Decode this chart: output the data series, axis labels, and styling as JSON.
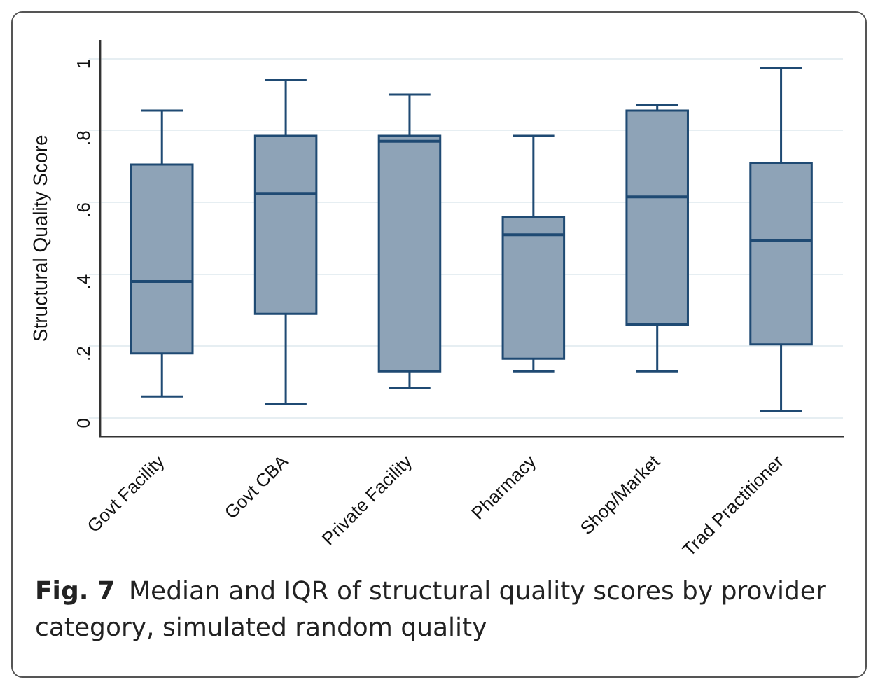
{
  "chart_data": {
    "type": "box",
    "ylabel": "Structural Quality Score",
    "categories": [
      "Govt Facility",
      "Govt CBA",
      "Private Facility",
      "Pharmacy",
      "Shop/Market",
      "Trad Practitioner"
    ],
    "boxes": [
      {
        "low": 0.06,
        "q1": 0.18,
        "median": 0.38,
        "q3": 0.705,
        "high": 0.855
      },
      {
        "low": 0.04,
        "q1": 0.29,
        "median": 0.625,
        "q3": 0.785,
        "high": 0.94
      },
      {
        "low": 0.085,
        "q1": 0.13,
        "median": 0.77,
        "q3": 0.785,
        "high": 0.9
      },
      {
        "low": 0.13,
        "q1": 0.165,
        "median": 0.51,
        "q3": 0.56,
        "high": 0.785
      },
      {
        "low": 0.13,
        "q1": 0.26,
        "median": 0.615,
        "q3": 0.855,
        "high": 0.87
      },
      {
        "low": 0.02,
        "q1": 0.205,
        "median": 0.495,
        "q3": 0.71,
        "high": 0.975
      }
    ],
    "color": "#8ea3b7",
    "ylim": [
      -0.05,
      1.05
    ],
    "yticks": [
      {
        "value": 0,
        "label": "0"
      },
      {
        "value": 0.2,
        "label": ".2"
      },
      {
        "value": 0.4,
        "label": ".4"
      },
      {
        "value": 0.6,
        "label": ".6"
      },
      {
        "value": 0.8,
        "label": ".8"
      },
      {
        "value": 1,
        "label": "1"
      }
    ],
    "grid": "y",
    "legend": false,
    "annotations": [
      "Fig. 7",
      "Median and IQR of structural quality scores by provider category, simulated random quality"
    ]
  }
}
